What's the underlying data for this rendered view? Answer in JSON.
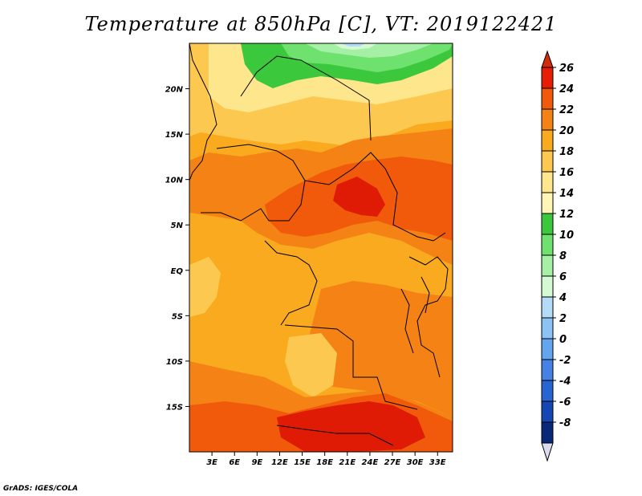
{
  "title": "Temperature at 850hPa [C], VT: 2019122421",
  "credit": "GrADS: IGES/COLA",
  "map": {
    "lat_labels": [
      "20N",
      "15N",
      "10N",
      "5N",
      "EQ",
      "5S",
      "10S",
      "15S"
    ],
    "lon_labels": [
      "3E",
      "6E",
      "9E",
      "12E",
      "15E",
      "18E",
      "21E",
      "24E",
      "27E",
      "30E",
      "33E"
    ],
    "lat_values": [
      20,
      15,
      10,
      5,
      0,
      -5,
      -10,
      -15
    ],
    "lon_values": [
      3,
      6,
      9,
      12,
      15,
      18,
      21,
      24,
      27,
      30,
      33
    ],
    "lon_range": [
      0,
      35
    ],
    "lat_range": [
      -20,
      25
    ]
  },
  "colorbar": {
    "labels": [
      "26",
      "24",
      "22",
      "20",
      "18",
      "16",
      "14",
      "12",
      "10",
      "8",
      "6",
      "4",
      "2",
      "0",
      "-2",
      "-4",
      "-6",
      "-8"
    ],
    "colors": [
      "#e61e05",
      "#f05a0a",
      "#f58214",
      "#faaa1e",
      "#fcc850",
      "#fde68c",
      "#fff5b4",
      "#3cc83c",
      "#6ee16e",
      "#a5f0a5",
      "#d4fad4",
      "#b4dcf8",
      "#8cc3f5",
      "#64a5f0",
      "#4682e6",
      "#2864d2",
      "#1446b4",
      "#0a2878"
    ],
    "over_color": "#d22d0a",
    "under_color": "#dcdcf0"
  },
  "field_colors": {
    "t24": "#e01b05",
    "t22": "#f05a0a",
    "t20": "#f58214",
    "t18": "#faaa1e",
    "t16": "#fcc850",
    "t14": "#fde68c",
    "t12": "#3cc83c",
    "t10": "#6ee16e",
    "t8": "#a5f0a5",
    "t6": "#d4fad4",
    "t4": "#b4dcf8"
  }
}
